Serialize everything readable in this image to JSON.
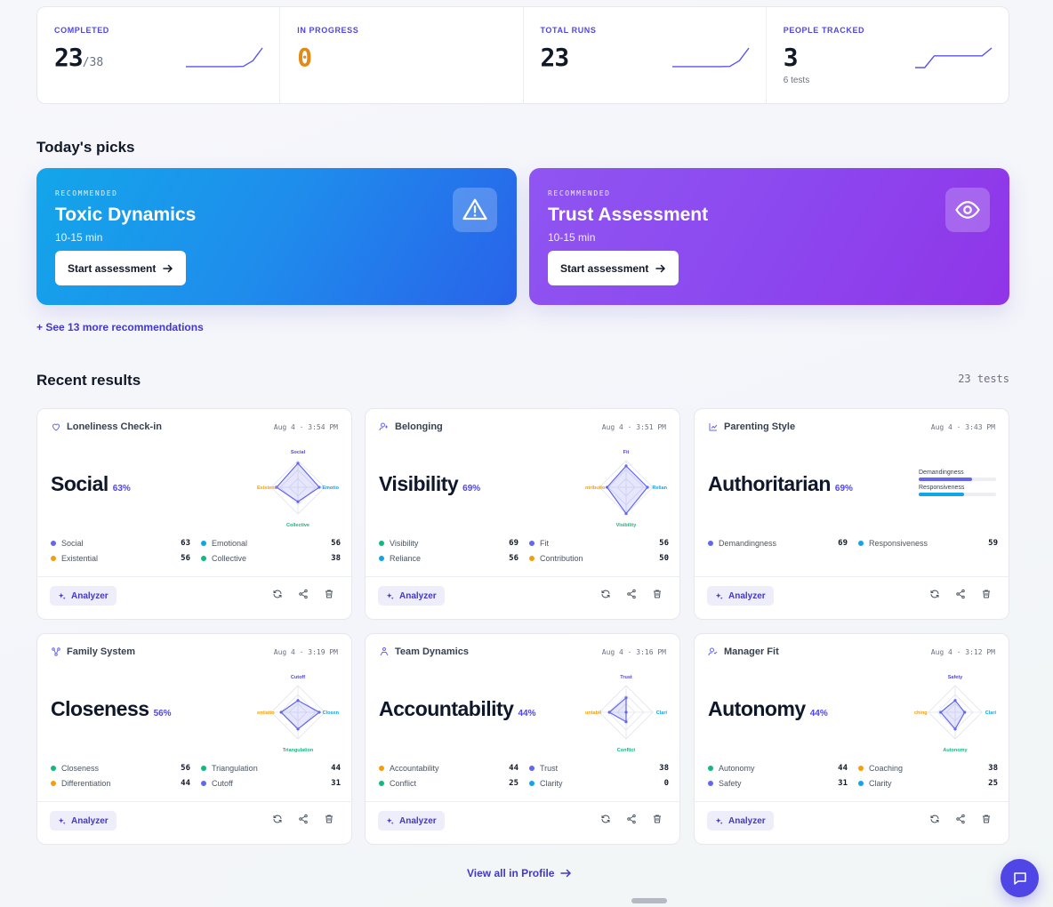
{
  "stats": [
    {
      "label": "COMPLETED",
      "value": "23",
      "denom": "/38",
      "sub": "",
      "color": "#111827",
      "spark": [
        0.05,
        0.05,
        0.05,
        0.05,
        0.05,
        0.05,
        0.06,
        0.35,
        1.0
      ]
    },
    {
      "label": "IN PROGRESS",
      "value": "0",
      "denom": "",
      "sub": "",
      "color": "#e08a17",
      "spark": []
    },
    {
      "label": "TOTAL RUNS",
      "value": "23",
      "denom": "",
      "sub": "",
      "color": "#111827",
      "spark": [
        0.05,
        0.05,
        0.05,
        0.05,
        0.05,
        0.05,
        0.06,
        0.35,
        1.0
      ]
    },
    {
      "label": "PEOPLE TRACKED",
      "value": "3",
      "denom": "",
      "sub": "6 tests",
      "color": "#111827",
      "spark": [
        0.0,
        0.0,
        0.6,
        0.6,
        0.6,
        0.6,
        0.6,
        0.6,
        1.0
      ]
    }
  ],
  "picks_title": "Today's picks",
  "picks": [
    {
      "tag": "RECOMMENDED",
      "title": "Toxic Dynamics",
      "duration": "10-15 min",
      "button": "Start assessment",
      "icon": "warning-icon"
    },
    {
      "tag": "RECOMMENDED",
      "title": "Trust Assessment",
      "duration": "10-15 min",
      "button": "Start assessment",
      "icon": "eye-icon"
    }
  ],
  "more_link": "+ See 13 more recommendations",
  "recent_title": "Recent results",
  "tests_count": "23 tests",
  "results": [
    {
      "name": "Loneliness Check-in",
      "icon": "heart-pulse-icon",
      "date": "Aug 4 · 3:54 PM",
      "result": "Social",
      "pct": "63%",
      "viz": "radar",
      "axes": [
        {
          "label": "Social",
          "color": "#4f46e5"
        },
        {
          "label": "Emotional",
          "color": "#0ea5e9"
        },
        {
          "label": "Collective",
          "color": "#10b981"
        },
        {
          "label": "Existential",
          "color": "#f59e0b"
        }
      ],
      "axis_labels_clipped": [
        "Social",
        "Emotio",
        "Collective",
        "Existenti"
      ],
      "values": [
        63,
        56,
        38,
        56
      ],
      "dims": [
        {
          "label": "Social",
          "value": "63",
          "color": "#6366f1"
        },
        {
          "label": "Emotional",
          "value": "56",
          "color": "#0ea5e9"
        },
        {
          "label": "Existential",
          "value": "56",
          "color": "#f59e0b"
        },
        {
          "label": "Collective",
          "value": "38",
          "color": "#10b981"
        }
      ]
    },
    {
      "name": "Belonging",
      "icon": "user-plus-icon",
      "date": "Aug 4 · 3:51 PM",
      "result": "Visibility",
      "pct": "69%",
      "viz": "radar",
      "axes": [
        {
          "label": "Fit",
          "color": "#4f46e5"
        },
        {
          "label": "Reliance",
          "color": "#0ea5e9"
        },
        {
          "label": "Visibility",
          "color": "#10b981"
        },
        {
          "label": "Contribution",
          "color": "#f59e0b"
        }
      ],
      "axis_labels_clipped": [
        "Fit",
        "Relian",
        "Visibility",
        "ntributio"
      ],
      "values": [
        56,
        56,
        69,
        50
      ],
      "dims": [
        {
          "label": "Visibility",
          "value": "69",
          "color": "#10b981"
        },
        {
          "label": "Fit",
          "value": "56",
          "color": "#6366f1"
        },
        {
          "label": "Reliance",
          "value": "56",
          "color": "#0ea5e9"
        },
        {
          "label": "Contribution",
          "value": "50",
          "color": "#f59e0b"
        }
      ]
    },
    {
      "name": "Parenting Style",
      "icon": "chart-icon",
      "date": "Aug 4 · 3:43 PM",
      "result": "Authoritarian",
      "pct": "69%",
      "viz": "bars",
      "bars": [
        {
          "label": "Demandingness",
          "value": 69,
          "color": "#6366f1"
        },
        {
          "label": "Responsiveness",
          "value": 59,
          "color": "#0ea5e9"
        }
      ],
      "dims": [
        {
          "label": "Demandingness",
          "value": "69",
          "color": "#6366f1"
        },
        {
          "label": "Responsiveness",
          "value": "59",
          "color": "#0ea5e9"
        }
      ]
    },
    {
      "name": "Family System",
      "icon": "network-icon",
      "date": "Aug 4 · 3:19 PM",
      "result": "Closeness",
      "pct": "56%",
      "viz": "radar",
      "axes": [
        {
          "label": "Cutoff",
          "color": "#4f46e5"
        },
        {
          "label": "Closeness",
          "color": "#0ea5e9"
        },
        {
          "label": "Triangulation",
          "color": "#10b981"
        },
        {
          "label": "Differentiation",
          "color": "#f59e0b"
        }
      ],
      "axis_labels_clipped": [
        "Cutoff",
        "Closen",
        "Triangulation",
        "entiatio"
      ],
      "values": [
        31,
        56,
        44,
        44
      ],
      "dims": [
        {
          "label": "Closeness",
          "value": "56",
          "color": "#10b981"
        },
        {
          "label": "Triangulation",
          "value": "44",
          "color": "#10b981"
        },
        {
          "label": "Differentiation",
          "value": "44",
          "color": "#f59e0b"
        },
        {
          "label": "Cutoff",
          "value": "31",
          "color": "#6366f1"
        }
      ]
    },
    {
      "name": "Team Dynamics",
      "icon": "team-icon",
      "date": "Aug 4 · 3:16 PM",
      "result": "Accountability",
      "pct": "44%",
      "viz": "radar",
      "axes": [
        {
          "label": "Trust",
          "color": "#4f46e5"
        },
        {
          "label": "Clarity",
          "color": "#0ea5e9"
        },
        {
          "label": "Conflict",
          "color": "#10b981"
        },
        {
          "label": "Accountability",
          "color": "#f59e0b"
        }
      ],
      "axis_labels_clipped": [
        "Trust",
        "Clari",
        "Conflict",
        "untabil"
      ],
      "values": [
        38,
        0,
        25,
        44
      ],
      "dims": [
        {
          "label": "Accountability",
          "value": "44",
          "color": "#f59e0b"
        },
        {
          "label": "Trust",
          "value": "38",
          "color": "#6366f1"
        },
        {
          "label": "Conflict",
          "value": "25",
          "color": "#10b981"
        },
        {
          "label": "Clarity",
          "value": "0",
          "color": "#0ea5e9"
        }
      ]
    },
    {
      "name": "Manager Fit",
      "icon": "user-check-icon",
      "date": "Aug 4 · 3:12 PM",
      "result": "Autonomy",
      "pct": "44%",
      "viz": "radar",
      "axes": [
        {
          "label": "Safety",
          "color": "#4f46e5"
        },
        {
          "label": "Clarity",
          "color": "#0ea5e9"
        },
        {
          "label": "Autonomy",
          "color": "#10b981"
        },
        {
          "label": "Coaching",
          "color": "#f59e0b"
        }
      ],
      "axis_labels_clipped": [
        "Safety",
        "Clari",
        "Autonomy",
        "ching"
      ],
      "values": [
        31,
        25,
        44,
        38
      ],
      "dims": [
        {
          "label": "Autonomy",
          "value": "44",
          "color": "#10b981"
        },
        {
          "label": "Coaching",
          "value": "38",
          "color": "#f59e0b"
        },
        {
          "label": "Safety",
          "value": "31",
          "color": "#6366f1"
        },
        {
          "label": "Clarity",
          "value": "25",
          "color": "#0ea5e9"
        }
      ]
    }
  ],
  "analyzer_label": "Analyzer",
  "view_all": "View all in Profile",
  "colors": {
    "accent": "#4f46e5",
    "orange": "#e08a17",
    "blue_card": "#1f8cec",
    "purple_card": "#8c48ef"
  }
}
